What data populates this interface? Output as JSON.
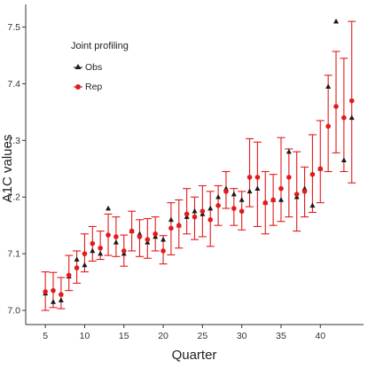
{
  "chart_data": {
    "type": "scatter",
    "xlabel": "Quarter",
    "ylabel": "A1C values",
    "xlim": [
      2.5,
      45.5
    ],
    "ylim": [
      6.975,
      7.54
    ],
    "xticks": [
      5,
      10,
      15,
      20,
      25,
      30,
      35,
      40
    ],
    "yticks": [
      7.0,
      7.1,
      7.2,
      7.3,
      7.4,
      7.5
    ],
    "ytick_labels": [
      "7.0",
      "7.1",
      "7.2",
      "7.3",
      "7.4",
      "7.5"
    ],
    "grid": false,
    "legend": {
      "title": "Joint profiling",
      "placement": "top-left",
      "entries": [
        "Obs",
        "Rep"
      ]
    },
    "colors": {
      "Obs": "#1a1a1a",
      "Rep": "#e31a1c"
    },
    "series": [
      {
        "name": "Obs",
        "marker": "triangle",
        "x": [
          5,
          6,
          7,
          8,
          9,
          10,
          11,
          12,
          13,
          14,
          15,
          16,
          17,
          18,
          19,
          20,
          21,
          22,
          23,
          24,
          25,
          26,
          27,
          28,
          29,
          30,
          31,
          32,
          33,
          34,
          35,
          36,
          37,
          38,
          39,
          40,
          41,
          42,
          43,
          44
        ],
        "values": [
          7.03,
          7.015,
          7.018,
          7.06,
          7.09,
          7.08,
          7.105,
          7.1,
          7.18,
          7.12,
          7.1,
          7.14,
          7.135,
          7.12,
          7.13,
          7.125,
          7.16,
          7.15,
          7.165,
          7.175,
          7.17,
          7.18,
          7.2,
          7.215,
          7.205,
          7.195,
          7.21,
          7.215,
          7.19,
          7.195,
          7.195,
          7.28,
          7.2,
          7.215,
          7.185,
          7.25,
          7.395,
          7.51,
          7.265,
          7.34
        ]
      },
      {
        "name": "Rep",
        "marker": "circle",
        "x": [
          5,
          6,
          7,
          8,
          9,
          10,
          11,
          12,
          13,
          14,
          15,
          16,
          17,
          18,
          19,
          20,
          21,
          22,
          23,
          24,
          25,
          26,
          27,
          28,
          29,
          30,
          31,
          32,
          33,
          34,
          35,
          36,
          37,
          38,
          39,
          40,
          41,
          42,
          43,
          44
        ],
        "values": [
          7.033,
          7.035,
          7.028,
          7.062,
          7.075,
          7.1,
          7.118,
          7.11,
          7.133,
          7.13,
          7.105,
          7.14,
          7.13,
          7.125,
          7.135,
          7.105,
          7.145,
          7.15,
          7.17,
          7.165,
          7.175,
          7.16,
          7.185,
          7.21,
          7.18,
          7.175,
          7.235,
          7.235,
          7.19,
          7.195,
          7.215,
          7.235,
          7.205,
          7.21,
          7.24,
          7.25,
          7.325,
          7.36,
          7.34,
          7.37
        ],
        "lower": [
          7.0,
          7.005,
          7.003,
          7.035,
          7.048,
          7.068,
          7.087,
          7.09,
          7.097,
          7.095,
          7.078,
          7.105,
          7.095,
          7.092,
          7.105,
          7.082,
          7.098,
          7.11,
          7.135,
          7.125,
          7.13,
          7.113,
          7.15,
          7.18,
          7.15,
          7.142,
          7.183,
          7.148,
          7.135,
          7.15,
          7.157,
          7.165,
          7.14,
          7.165,
          7.173,
          7.19,
          7.245,
          7.278,
          7.245,
          7.225
        ],
        "upper": [
          7.068,
          7.067,
          7.058,
          7.097,
          7.105,
          7.135,
          7.148,
          7.14,
          7.17,
          7.165,
          7.133,
          7.175,
          7.16,
          7.162,
          7.165,
          7.132,
          7.19,
          7.195,
          7.215,
          7.2,
          7.22,
          7.21,
          7.22,
          7.245,
          7.215,
          7.21,
          7.303,
          7.297,
          7.245,
          7.24,
          7.305,
          7.285,
          7.28,
          7.253,
          7.31,
          7.335,
          7.415,
          7.457,
          7.445,
          7.51
        ]
      }
    ]
  }
}
